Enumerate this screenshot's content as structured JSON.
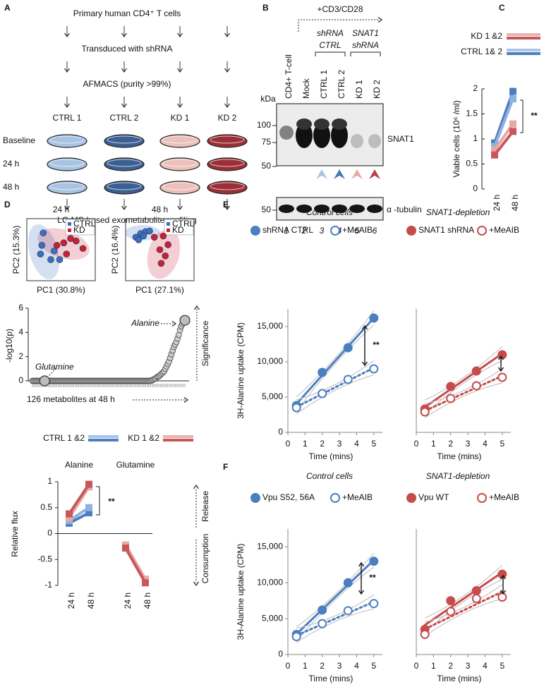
{
  "panels": {
    "A": {
      "label": "A",
      "steps": [
        "Primary human CD4⁺ T cells",
        "Transduced with shRNA",
        "AFMACS (purity >99%)"
      ],
      "columns": [
        {
          "name": "CTRL 1",
          "color": "#a9c3e3"
        },
        {
          "name": "CTRL 2",
          "color": "#3c5f94"
        },
        {
          "name": "KD 1",
          "color": "#ecc0bb"
        },
        {
          "name": "KD 2",
          "color": "#9c2f36"
        }
      ],
      "rows": [
        "Baseline",
        "24 h",
        "48 h"
      ],
      "final": "LC-MS-based exometabolite profiling"
    },
    "B": {
      "label": "B",
      "treatment": "+CD3/CD28",
      "lanes": [
        {
          "label": "CD4+ T-cell",
          "number": 1
        },
        {
          "label": "Mock",
          "number": 2
        },
        {
          "label": "CTRL 1",
          "number": 3
        },
        {
          "label": "CTRL 2",
          "number": 4
        },
        {
          "label": "KD 1",
          "number": 5
        },
        {
          "label": "KD 2",
          "number": 6
        }
      ],
      "groups": [
        [
          "shRNA",
          "CTRL"
        ],
        [
          "SNAT1",
          "shRNA"
        ]
      ],
      "unit": "kDa",
      "snat1_markers": [
        100,
        75,
        50
      ],
      "tubulin_markers": [
        50
      ],
      "bands": [
        "SNAT1",
        "α -tubulin"
      ],
      "arrowhead_colors": [
        "#a9c3e3",
        "#4a77b4",
        "#e8a8a4",
        "#b3434a"
      ]
    },
    "C": {
      "type": "line",
      "label": "C",
      "ylabel": "Viable cells (10⁶ /ml)",
      "categories": [
        "24 h",
        "48 h"
      ],
      "ylim": [
        0,
        2
      ],
      "yticks": [
        0,
        0.5,
        1,
        1.5,
        2
      ],
      "legend": [
        {
          "label": "KD 1 &2",
          "colors": [
            "#eab1ad",
            "#c9565a"
          ]
        },
        {
          "label": "CTRL 1& 2",
          "colors": [
            "#a8c5e8",
            "#4a7fc0"
          ]
        }
      ],
      "annotation": "**",
      "series": [
        {
          "color": "#4a7fc0",
          "values": [
            0.92,
            1.95
          ]
        },
        {
          "color": "#8fb3e0",
          "values": [
            0.85,
            1.8
          ]
        },
        {
          "color": "#e8a7a3",
          "values": [
            0.78,
            1.3
          ]
        },
        {
          "color": "#c9565a",
          "values": [
            0.68,
            1.15
          ]
        }
      ]
    },
    "D": {
      "label": "D",
      "pca": [
        {
          "type": "scatter",
          "title": "24 h",
          "xlabel": "PC1 (30.8%)",
          "ylabel": "PC2 (15.3%)",
          "xlim": [
            0,
            100
          ],
          "ylim": [
            0,
            100
          ],
          "series": [
            {
              "name": "CTRL",
              "color": "#3a6fc4",
              "x": [
                24,
                22,
                20,
                35,
                48,
                40
              ],
              "values": [
                77,
                57,
                43,
                34,
                34,
                48
              ]
            },
            {
              "name": "KD",
              "color": "#c8203a",
              "x": [
                44,
                54,
                64,
                72,
                58,
                82
              ],
              "values": [
                57,
                61,
                68,
                64,
                43,
                52
              ]
            }
          ]
        },
        {
          "type": "scatter",
          "title": "48 h",
          "xlabel": "PC1 (27.1%)",
          "ylabel": "PC2 (16.4%)",
          "xlim": [
            0,
            100
          ],
          "ylim": [
            0,
            100
          ],
          "series": [
            {
              "name": "CTRL",
              "color": "#3a6fc4",
              "x": [
                15,
                22,
                29,
                35,
                26,
                19
              ],
              "values": [
                70,
                76,
                79,
                80,
                72,
                66
              ]
            },
            {
              "name": "KD",
              "color": "#c8203a",
              "x": [
                42,
                55,
                62,
                50,
                58,
                52
              ],
              "values": [
                70,
                72,
                58,
                50,
                40,
                28
              ]
            }
          ]
        }
      ],
      "ranking": {
        "type": "scatter",
        "ylabel": "-log10(p)",
        "xlabel": "126 metabolites at 48 h",
        "side_label": "Significance",
        "ylim": [
          0,
          6
        ],
        "yticks": [
          0,
          2,
          4,
          6
        ],
        "xlim": [
          1,
          126
        ],
        "values": [
          0,
          0,
          0,
          0,
          0,
          0,
          0,
          0,
          0,
          0,
          0,
          0,
          0,
          0,
          0,
          0,
          0,
          0,
          0,
          0,
          0,
          0,
          0,
          0,
          0,
          0,
          0,
          0,
          0,
          0,
          0,
          0,
          0,
          0,
          0,
          0,
          0,
          0,
          0,
          0,
          0,
          0,
          0,
          0,
          0,
          0,
          0,
          0,
          0,
          0,
          0,
          0,
          0,
          0,
          0,
          0,
          0,
          0,
          0,
          0,
          0,
          0,
          0,
          0,
          0,
          0,
          0,
          0,
          0,
          0,
          0,
          0,
          0,
          0,
          0,
          0,
          0,
          0,
          0,
          0,
          0,
          0,
          0,
          0,
          0,
          0,
          0,
          0,
          0,
          0,
          0,
          0,
          0,
          0,
          0,
          0,
          0,
          0,
          0.05,
          0.1,
          0.15,
          0.2,
          0.3,
          0.35,
          0.4,
          0.5,
          0.6,
          0.7,
          0.8,
          1.0,
          1.2,
          1.4,
          1.6,
          1.9,
          2.2,
          2.5,
          2.8,
          3.0,
          3.2,
          3.5,
          3.8,
          4.2,
          4.5,
          4.7,
          4.9,
          5.0
        ],
        "highlights": [
          {
            "label": "Glutamine",
            "x": 11,
            "value": 0
          },
          {
            "label": "Alanine",
            "x": 126,
            "value": 5
          }
        ]
      },
      "flux": {
        "type": "line",
        "ylabel": "Relative flux",
        "ylim": [
          -1,
          1
        ],
        "yticks": [
          1,
          0.5,
          0,
          -0.5,
          -1
        ],
        "legend": [
          {
            "label": "CTRL 1 &2",
            "colors": [
              "#a8c5e8",
              "#4a7fc0"
            ]
          },
          {
            "label": "KD 1 &2",
            "colors": [
              "#eab1ad",
              "#c9565a"
            ]
          }
        ],
        "annotation": "**",
        "directions": [
          "Release",
          "Consumption"
        ],
        "groups": [
          {
            "name": "Alanine",
            "categories": [
              "24 h",
              "48 h"
            ],
            "series": [
              {
                "color": "#4a7fc0",
                "values": [
                  0.2,
                  0.4
                ]
              },
              {
                "color": "#8fb3e0",
                "values": [
                  0.25,
                  0.5
                ]
              },
              {
                "color": "#e8a7a3",
                "values": [
                  0.3,
                  0.9
                ]
              },
              {
                "color": "#c9565a",
                "values": [
                  0.38,
                  0.95
                ]
              }
            ]
          },
          {
            "name": "Glutamine",
            "categories": [
              "24 h",
              "48 h"
            ],
            "series": [
              {
                "color": "#4a7fc0",
                "values": [
                  -0.27,
                  -0.93
                ]
              },
              {
                "color": "#8fb3e0",
                "values": [
                  -0.25,
                  -0.9
                ]
              },
              {
                "color": "#e8a7a3",
                "values": [
                  -0.22,
                  -0.88
                ]
              },
              {
                "color": "#c9565a",
                "values": [
                  -0.28,
                  -0.95
                ]
              }
            ]
          }
        ]
      }
    },
    "E": {
      "label": "E",
      "charts": [
        {
          "type": "scatter",
          "title": "Control cells",
          "ylabel": "3H-Alanine uptake (CPM)",
          "xlabel": "Time (mins)",
          "x": [
            0.5,
            2,
            3.5,
            5
          ],
          "xlim": [
            0,
            5.5
          ],
          "xticks": [
            0,
            1,
            2,
            3,
            4,
            5
          ],
          "ylim": [
            0,
            17500
          ],
          "yticks": [
            0,
            {
              "value": 5000,
              "label": "5,000"
            },
            {
              "value": 10000,
              "label": "10,000"
            },
            {
              "value": 15000,
              "label": "15,000"
            }
          ],
          "trendline": "linear",
          "annotation": "**",
          "series": [
            {
              "name": "shRNA CTRL",
              "color": "#4a7fc0",
              "marker": "filled",
              "linestyle": "solid",
              "values": [
                3800,
                8500,
                12000,
                16200
              ]
            },
            {
              "name": "+MeAIB",
              "color": "#4a7fc0",
              "marker": "open",
              "linestyle": "dotted",
              "values": [
                3500,
                5500,
                7500,
                9000
              ]
            }
          ]
        },
        {
          "type": "scatter",
          "title": "SNAT1-depletion",
          "xlabel": "Time (mins)",
          "x": [
            0.5,
            2,
            3.5,
            5
          ],
          "xlim": [
            0,
            5.5
          ],
          "xticks": [
            0,
            1,
            2,
            3,
            4,
            5
          ],
          "ylim": [
            0,
            17500
          ],
          "trendline": "linear",
          "series": [
            {
              "name": "SNAT1 shRNA",
              "color": "#c84b4b",
              "marker": "filled",
              "linestyle": "solid",
              "values": [
                3300,
                6500,
                8700,
                11000
              ]
            },
            {
              "name": "+MeAIB",
              "color": "#c84b4b",
              "marker": "open",
              "linestyle": "dotted",
              "values": [
                2900,
                4800,
                6600,
                7800
              ]
            }
          ]
        }
      ]
    },
    "F": {
      "label": "F",
      "charts": [
        {
          "type": "scatter",
          "title": "Control cells",
          "ylabel": "3H-Alanine  uptake (CPM)",
          "xlabel": "Time (mins)",
          "x": [
            0.5,
            2,
            3.5,
            5
          ],
          "xlim": [
            0,
            5.5
          ],
          "xticks": [
            0,
            1,
            2,
            3,
            4,
            5
          ],
          "ylim": [
            0,
            17500
          ],
          "yticks": [
            0,
            {
              "value": 5000,
              "label": "5,000"
            },
            {
              "value": 10000,
              "label": "10,000"
            },
            {
              "value": 15000,
              "label": "15,000"
            }
          ],
          "trendline": "linear",
          "annotation": "**",
          "series": [
            {
              "name": "Vpu S52, 56A",
              "color": "#4a7fc0",
              "marker": "filled",
              "linestyle": "solid",
              "values": [
                2800,
                6200,
                10000,
                13000
              ]
            },
            {
              "name": "+MeAIB",
              "color": "#4a7fc0",
              "marker": "open",
              "linestyle": "dotted",
              "values": [
                2500,
                4300,
                6100,
                7100
              ]
            }
          ]
        },
        {
          "type": "scatter",
          "title": "SNAT1-depletion",
          "xlabel": "Time (mins)",
          "x": [
            0.5,
            2,
            3.5,
            5
          ],
          "xlim": [
            0,
            5.5
          ],
          "xticks": [
            0,
            1,
            2,
            3,
            4,
            5
          ],
          "ylim": [
            0,
            17500
          ],
          "trendline": "linear",
          "series": [
            {
              "name": "Vpu WT",
              "color": "#c84b4b",
              "marker": "filled",
              "linestyle": "solid",
              "values": [
                3500,
                7500,
                8900,
                11200
              ]
            },
            {
              "name": "+MeAIB",
              "color": "#c84b4b",
              "marker": "open",
              "linestyle": "dotted",
              "values": [
                2800,
                6000,
                7800,
                8000
              ]
            }
          ]
        }
      ]
    }
  }
}
